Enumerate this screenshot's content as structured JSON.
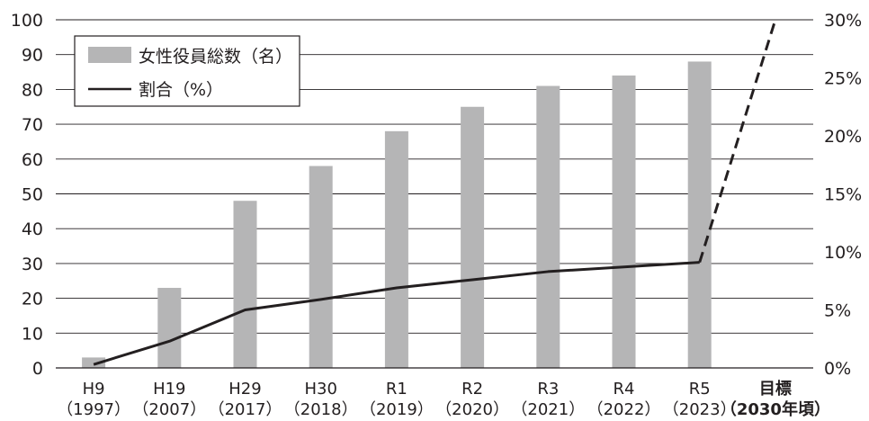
{
  "chart_data": {
    "type": "bar",
    "categories": [
      [
        "H9",
        "（1997）"
      ],
      [
        "H19",
        "（2007）"
      ],
      [
        "H29",
        "（2017）"
      ],
      [
        "H30",
        "（2018）"
      ],
      [
        "R1",
        "（2019）"
      ],
      [
        "R2",
        "（2020）"
      ],
      [
        "R3",
        "（2021）"
      ],
      [
        "R4",
        "（2022）"
      ],
      [
        "R5",
        "（2023）"
      ],
      [
        "目標",
        "（2030年頃）"
      ]
    ],
    "target_category_index": 9,
    "series": [
      {
        "name": "女性役員総数（名）",
        "type": "bar",
        "axis": "left",
        "color": "#b5b5b6",
        "values": [
          3,
          23,
          48,
          58,
          68,
          75,
          81,
          84,
          88,
          null
        ]
      },
      {
        "name": "割合（%）",
        "type": "line",
        "axis": "right",
        "color": "#231f20",
        "values": [
          0.3,
          2.3,
          5.0,
          5.9,
          6.9,
          7.6,
          8.3,
          8.7,
          9.1,
          30
        ],
        "dashed_last_segment": true
      }
    ],
    "y_left": {
      "min": 0,
      "max": 100,
      "step": 10,
      "ticks": [
        "0",
        "10",
        "20",
        "30",
        "40",
        "50",
        "60",
        "70",
        "80",
        "90",
        "100"
      ]
    },
    "y_right": {
      "min": 0,
      "max": 30,
      "step": 5,
      "ticks": [
        "0%",
        "5%",
        "10%",
        "15%",
        "20%",
        "25%",
        "30%"
      ]
    },
    "legend": {
      "position": "top-left"
    },
    "grid": {
      "horizontal": true
    }
  }
}
